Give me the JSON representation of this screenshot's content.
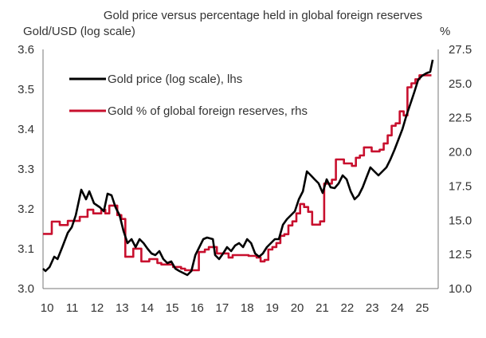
{
  "chart_data": {
    "type": "line",
    "title": "Gold price versus percentage held in global foreign reserves",
    "ylabel_left": "Gold/USD (log scale)",
    "ylabel_right": "%",
    "xlabel": "",
    "x_ticks": [
      "10",
      "11",
      "12",
      "13",
      "14",
      "15",
      "16",
      "17",
      "18",
      "19",
      "20",
      "21",
      "22",
      "23",
      "24",
      "25"
    ],
    "x_tick_values": [
      10,
      11,
      12,
      13,
      14,
      15,
      16,
      17,
      18,
      19,
      20,
      21,
      22,
      23,
      24,
      25
    ],
    "xlim": [
      9.9,
      25.7
    ],
    "ylim_left": [
      3.0,
      3.6
    ],
    "y_ticks_left": [
      "3.0",
      "3.1",
      "3.2",
      "3.3",
      "3.4",
      "3.5",
      "3.6"
    ],
    "y_tick_values_left": [
      3.0,
      3.1,
      3.2,
      3.3,
      3.4,
      3.5,
      3.6
    ],
    "ylim_right": [
      10.0,
      27.5
    ],
    "y_ticks_right": [
      "10.0",
      "12.5",
      "15.0",
      "17.5",
      "20.0",
      "22.5",
      "25.0",
      "27.5"
    ],
    "y_tick_values_right": [
      10.0,
      12.5,
      15.0,
      17.5,
      20.0,
      22.5,
      25.0,
      27.5
    ],
    "grid": false,
    "legend_position": "top-left",
    "series": [
      {
        "name": "Gold price (log scale), lhs",
        "axis": "left",
        "color": "#000000",
        "step": false,
        "x": [
          9.9,
          10.0,
          10.16,
          10.35,
          10.48,
          10.67,
          10.89,
          11.05,
          11.21,
          11.43,
          11.62,
          11.75,
          11.94,
          12.17,
          12.33,
          12.48,
          12.64,
          12.8,
          12.96,
          13.12,
          13.28,
          13.44,
          13.6,
          13.76,
          13.92,
          14.08,
          14.24,
          14.39,
          14.55,
          14.71,
          14.87,
          15.03,
          15.19,
          15.35,
          15.67,
          15.83,
          15.99,
          16.15,
          16.31,
          16.46,
          16.69,
          16.78,
          16.94,
          17.1,
          17.26,
          17.42,
          17.58,
          17.74,
          17.9,
          18.06,
          18.22,
          18.38,
          18.54,
          18.69,
          18.85,
          19.01,
          19.17,
          19.33,
          19.49,
          19.65,
          19.81,
          19.97,
          20.13,
          20.29,
          20.45,
          20.61,
          20.76,
          20.92,
          21.08,
          21.24,
          21.4,
          21.56,
          21.72,
          21.88,
          22.04,
          22.2,
          22.36,
          22.52,
          22.68,
          22.84,
          22.99,
          23.15,
          23.31,
          23.47,
          23.63,
          23.79,
          23.95,
          24.11,
          24.27,
          24.43,
          24.59,
          24.75,
          24.9,
          25.06,
          25.22,
          25.38,
          25.48
        ],
        "values": [
          3.05,
          3.044,
          3.054,
          3.08,
          3.074,
          3.104,
          3.14,
          3.154,
          3.184,
          3.248,
          3.224,
          3.244,
          3.214,
          3.204,
          3.194,
          3.238,
          3.234,
          3.204,
          3.184,
          3.144,
          3.114,
          3.124,
          3.104,
          3.124,
          3.114,
          3.1,
          3.088,
          3.084,
          3.094,
          3.074,
          3.064,
          3.068,
          3.05,
          3.044,
          3.034,
          3.044,
          3.084,
          3.104,
          3.124,
          3.128,
          3.124,
          3.084,
          3.074,
          3.088,
          3.104,
          3.094,
          3.108,
          3.114,
          3.104,
          3.124,
          3.114,
          3.088,
          3.08,
          3.088,
          3.104,
          3.114,
          3.124,
          3.124,
          3.16,
          3.174,
          3.184,
          3.194,
          3.224,
          3.244,
          3.294,
          3.284,
          3.274,
          3.264,
          3.24,
          3.274,
          3.254,
          3.252,
          3.264,
          3.284,
          3.274,
          3.244,
          3.224,
          3.234,
          3.254,
          3.28,
          3.304,
          3.294,
          3.284,
          3.294,
          3.304,
          3.324,
          3.348,
          3.374,
          3.4,
          3.434,
          3.464,
          3.494,
          3.524,
          3.534,
          3.54,
          3.544,
          3.574
        ]
      },
      {
        "name": "Gold % of global foreign reserves, rhs",
        "axis": "right",
        "color": "#c8102e",
        "step": true,
        "x": [
          9.9,
          10.16,
          10.25,
          10.48,
          10.57,
          10.73,
          10.89,
          11.21,
          11.37,
          11.62,
          11.68,
          11.91,
          12.07,
          12.23,
          12.39,
          12.55,
          12.71,
          12.87,
          13.03,
          13.19,
          13.35,
          13.51,
          13.67,
          13.83,
          14.15,
          14.31,
          14.47,
          14.63,
          14.95,
          15.1,
          15.26,
          15.42,
          15.58,
          15.89,
          16.13,
          16.37,
          16.53,
          16.69,
          16.85,
          17.01,
          17.32,
          17.48,
          17.8,
          17.96,
          18.12,
          18.44,
          18.6,
          18.76,
          18.91,
          19.07,
          19.23,
          19.39,
          19.55,
          19.71,
          19.87,
          20.03,
          20.18,
          20.34,
          20.5,
          20.66,
          20.82,
          20.98,
          21.14,
          21.3,
          21.45,
          21.61,
          21.77,
          21.93,
          22.09,
          22.25,
          22.41,
          22.57,
          22.73,
          22.89,
          23.04,
          23.2,
          23.36,
          23.52,
          23.68,
          23.84,
          24.0,
          24.16,
          24.32,
          24.47,
          24.63,
          24.79,
          24.95,
          25.11,
          25.27,
          25.43
        ],
        "values": [
          14.0,
          14.0,
          14.9,
          14.9,
          14.65,
          14.65,
          14.95,
          14.95,
          15.25,
          15.25,
          15.77,
          15.5,
          15.5,
          15.77,
          15.5,
          16.07,
          16.07,
          15.38,
          15.09,
          12.33,
          12.33,
          12.92,
          12.92,
          11.99,
          12.16,
          12.16,
          11.87,
          11.76,
          11.76,
          11.58,
          11.58,
          11.46,
          11.34,
          11.34,
          12.68,
          12.86,
          13.04,
          13.04,
          12.57,
          12.57,
          12.27,
          12.45,
          12.45,
          12.45,
          12.39,
          12.27,
          11.99,
          12.1,
          12.86,
          13.04,
          13.33,
          13.86,
          13.98,
          14.62,
          14.92,
          15.5,
          16.19,
          15.97,
          15.62,
          14.68,
          14.68,
          14.92,
          17.68,
          17.68,
          17.97,
          19.45,
          19.45,
          19.16,
          19.16,
          18.98,
          19.57,
          19.74,
          20.33,
          20.33,
          20.04,
          20.04,
          20.16,
          20.62,
          21.21,
          21.91,
          22.09,
          22.97,
          22.67,
          24.73,
          25.02,
          25.32,
          25.61,
          25.61,
          25.61,
          25.61
        ]
      }
    ]
  }
}
